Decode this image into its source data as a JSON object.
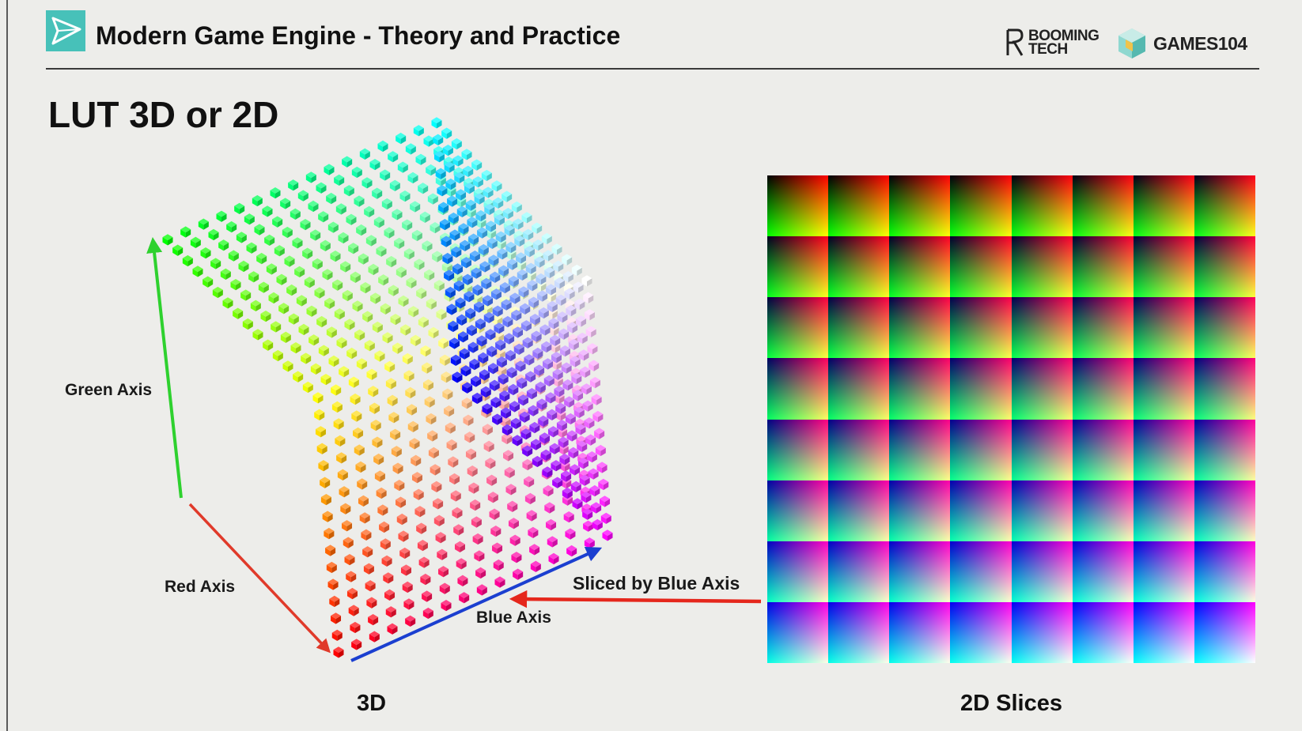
{
  "header": {
    "title": "Modern Game Engine - Theory and Practice",
    "brand_booming_line1": "BOOMING",
    "brand_booming_line2": "TECH",
    "brand_games": "GAMES104",
    "accent": "#47c1b9"
  },
  "slide": {
    "title": "LUT 3D or 2D"
  },
  "cube": {
    "green_axis_label": "Green Axis",
    "red_axis_label": "Red Axis",
    "blue_axis_label": "Blue Axis",
    "caption": "3D",
    "grid_size": 16,
    "colors": {
      "green_axis": "#2ed12e",
      "red_axis": "#e03a2a",
      "blue_axis": "#1b3fd0"
    }
  },
  "arrow": {
    "label": "Sliced by Blue Axis",
    "color": "#e5271c"
  },
  "slices": {
    "caption": "2D Slices",
    "rows": 8,
    "cols": 8
  }
}
